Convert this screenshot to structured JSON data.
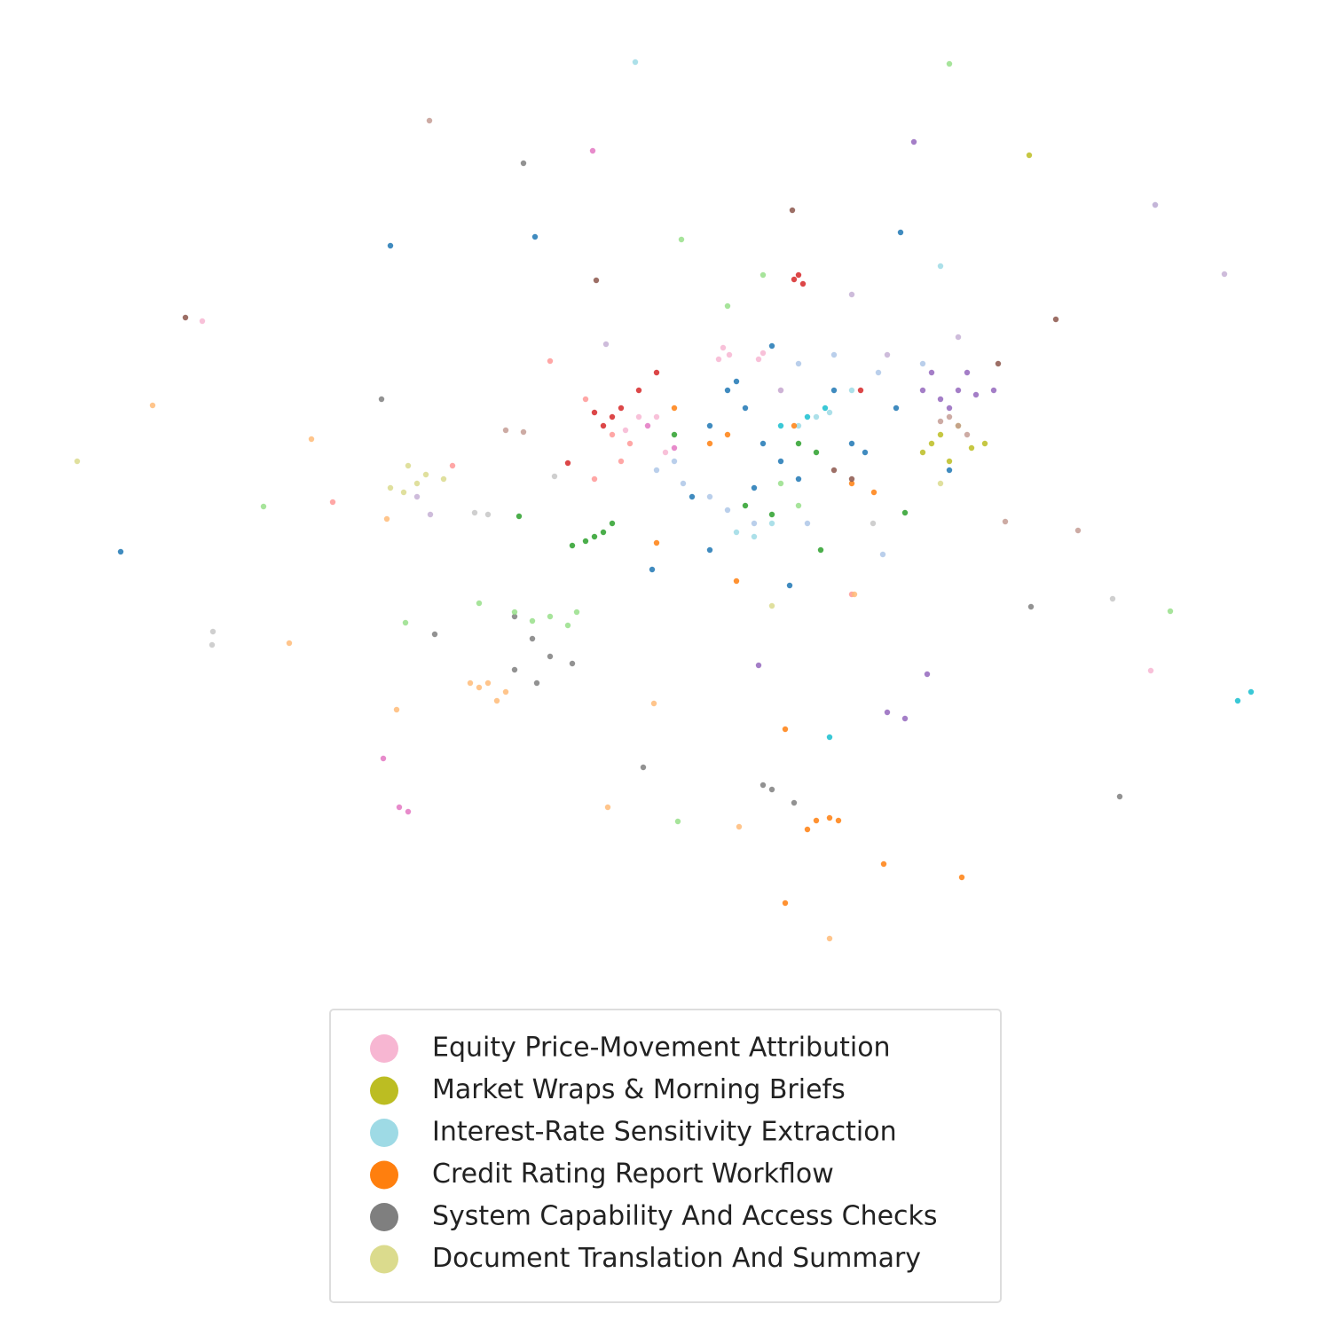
{
  "chart_data": {
    "type": "scatter",
    "xlim": [
      0,
      1400
    ],
    "ylim": [
      0,
      1050
    ],
    "legend": "lower center",
    "series": [
      {
        "name": "Equity Price-Movement Attribution",
        "color": "#f7b6d2",
        "x": [
          765,
          772,
          760,
          805,
          810,
          670,
          655,
          690,
          178,
          1247,
          830,
          700
        ],
        "y": [
          688,
          680,
          675,
          675,
          682,
          610,
          595,
          610,
          718,
          324,
          640,
          570
        ]
      },
      {
        "name": "Market Wraps & Morning Briefs",
        "color": "#bcbd22",
        "x": [
          1000,
          1010,
          1045,
          1060,
          990,
          1110,
          1020,
          1030
        ],
        "y": [
          580,
          590,
          575,
          580,
          570,
          905,
          560,
          600
        ]
      },
      {
        "name": "Interest-Rate Sensitivity Extraction",
        "color": "#9edae5",
        "x": [
          666,
          780,
          800,
          870,
          850,
          885,
          820,
          1010,
          910
        ],
        "y": [
          1010,
          480,
          475,
          610,
          600,
          615,
          490,
          780,
          640
        ]
      },
      {
        "name": "Credit Rating Report Workflow",
        "color": "#ff7f0e",
        "x": [
          835,
          870,
          885,
          860,
          895,
          946,
          1034,
          835,
          780,
          770,
          750,
          690,
          910,
          935,
          710,
          845
        ],
        "y": [
          258,
          155,
          158,
          145,
          155,
          106,
          91,
          62,
          425,
          590,
          580,
          468,
          535,
          525,
          620,
          600
        ]
      },
      {
        "name": "System Capability And Access Checks",
        "color": "#7f7f7f",
        "x": [
          540,
          380,
          550,
          570,
          595,
          530,
          820,
          845,
          810,
          1212,
          1112,
          675,
          440,
          555,
          530
        ],
        "y": [
          896,
          630,
          360,
          340,
          332,
          385,
          190,
          175,
          195,
          182,
          396,
          215,
          365,
          310,
          325
        ]
      },
      {
        "name": "Document Translation And Summary",
        "color": "#dbdb8d",
        "x": [
          410,
          390,
          420,
          430,
          405,
          37,
          820,
          1010,
          450
        ],
        "y": [
          555,
          530,
          535,
          545,
          525,
          560,
          397,
          535,
          540
        ]
      },
      {
        "color": "#1f77b4",
        "x": [
          770,
          790,
          750,
          810,
          830,
          800,
          850,
          890,
          910,
          960,
          925,
          750,
          840,
          390,
          965,
          553,
          86,
          685,
          1020,
          730,
          780,
          820
        ],
        "y": [
          640,
          620,
          600,
          580,
          560,
          530,
          540,
          640,
          580,
          620,
          570,
          460,
          420,
          803,
          818,
          813,
          458,
          438,
          550,
          520,
          650,
          690
        ]
      },
      {
        "color": "#aec7e8",
        "x": [
          690,
          720,
          750,
          770,
          710,
          850,
          890,
          940,
          990,
          1252,
          800,
          860,
          945
        ],
        "y": [
          550,
          535,
          520,
          505,
          560,
          670,
          680,
          660,
          670,
          849,
          490,
          490,
          455
        ]
      },
      {
        "color": "#d62728",
        "x": [
          620,
          640,
          630,
          650,
          850,
          855,
          845,
          670,
          690,
          920,
          590
        ],
        "y": [
          615,
          610,
          600,
          620,
          770,
          760,
          765,
          640,
          660,
          640,
          558
        ]
      },
      {
        "color": "#ff9896",
        "x": [
          610,
          640,
          660,
          650,
          460,
          325,
          570,
          910,
          620
        ],
        "y": [
          630,
          590,
          580,
          560,
          555,
          514,
          673,
          410,
          540
        ]
      },
      {
        "color": "#2ca02c",
        "x": [
          595,
          610,
          630,
          640,
          620,
          850,
          870,
          820,
          790,
          875,
          535,
          970,
          710
        ],
        "y": [
          465,
          470,
          480,
          490,
          475,
          580,
          570,
          500,
          510,
          460,
          498,
          502,
          590
        ]
      },
      {
        "color": "#98df8a",
        "x": [
          530,
          550,
          570,
          590,
          600,
          490,
          1020,
          718,
          770,
          810,
          830,
          850,
          247,
          407,
          714,
          1269
        ],
        "y": [
          390,
          380,
          385,
          375,
          390,
          400,
          1008,
          810,
          735,
          770,
          535,
          510,
          509,
          378,
          154,
          391
        ]
      },
      {
        "color": "#9467bd",
        "x": [
          990,
          1010,
          1030,
          1050,
          1070,
          1020,
          1000,
          1040,
          980,
          970,
          950,
          995,
          805
        ],
        "y": [
          640,
          630,
          640,
          635,
          640,
          620,
          660,
          660,
          920,
          270,
          277,
          320,
          330
        ]
      },
      {
        "color": "#c5b0d5",
        "x": [
          1330,
          1252,
          910,
          1030,
          420,
          435,
          830,
          633,
          950
        ],
        "y": [
          771,
          849,
          748,
          700,
          520,
          500,
          640,
          692,
          680
        ]
      },
      {
        "color": "#8c564b",
        "x": [
          843,
          1140,
          159,
          622,
          890,
          910,
          1075
        ],
        "y": [
          843,
          720,
          722,
          764,
          550,
          540,
          670
        ]
      },
      {
        "color": "#c49c94",
        "x": [
          1020,
          1030,
          1040,
          1010,
          434,
          520,
          540,
          1083,
          1165
        ],
        "y": [
          610,
          600,
          590,
          605,
          944,
          595,
          593,
          492,
          482
        ]
      },
      {
        "color": "#e377c2",
        "x": [
          400,
          410,
          382,
          618,
          710,
          680
        ],
        "y": [
          170,
          165,
          225,
          910,
          575,
          600
        ]
      },
      {
        "color": "#ffbb78",
        "x": [
          490,
          500,
          510,
          520,
          480,
          397,
          276,
          122,
          301,
          635,
          783,
          885,
          913,
          687,
          386
        ],
        "y": [
          305,
          310,
          290,
          300,
          310,
          280,
          355,
          623,
          585,
          170,
          148,
          22,
          410,
          287,
          495
        ]
      },
      {
        "color": "#c7c7c7",
        "x": [
          190,
          189,
          1204,
          485,
          575,
          934,
          500
        ],
        "y": [
          368,
          353,
          405,
          502,
          543,
          490,
          500
        ]
      },
      {
        "color": "#17becf",
        "x": [
          1360,
          1345,
          885,
          860,
          880,
          830
        ],
        "y": [
          300,
          290,
          249,
          610,
          620,
          600
        ]
      }
    ]
  }
}
